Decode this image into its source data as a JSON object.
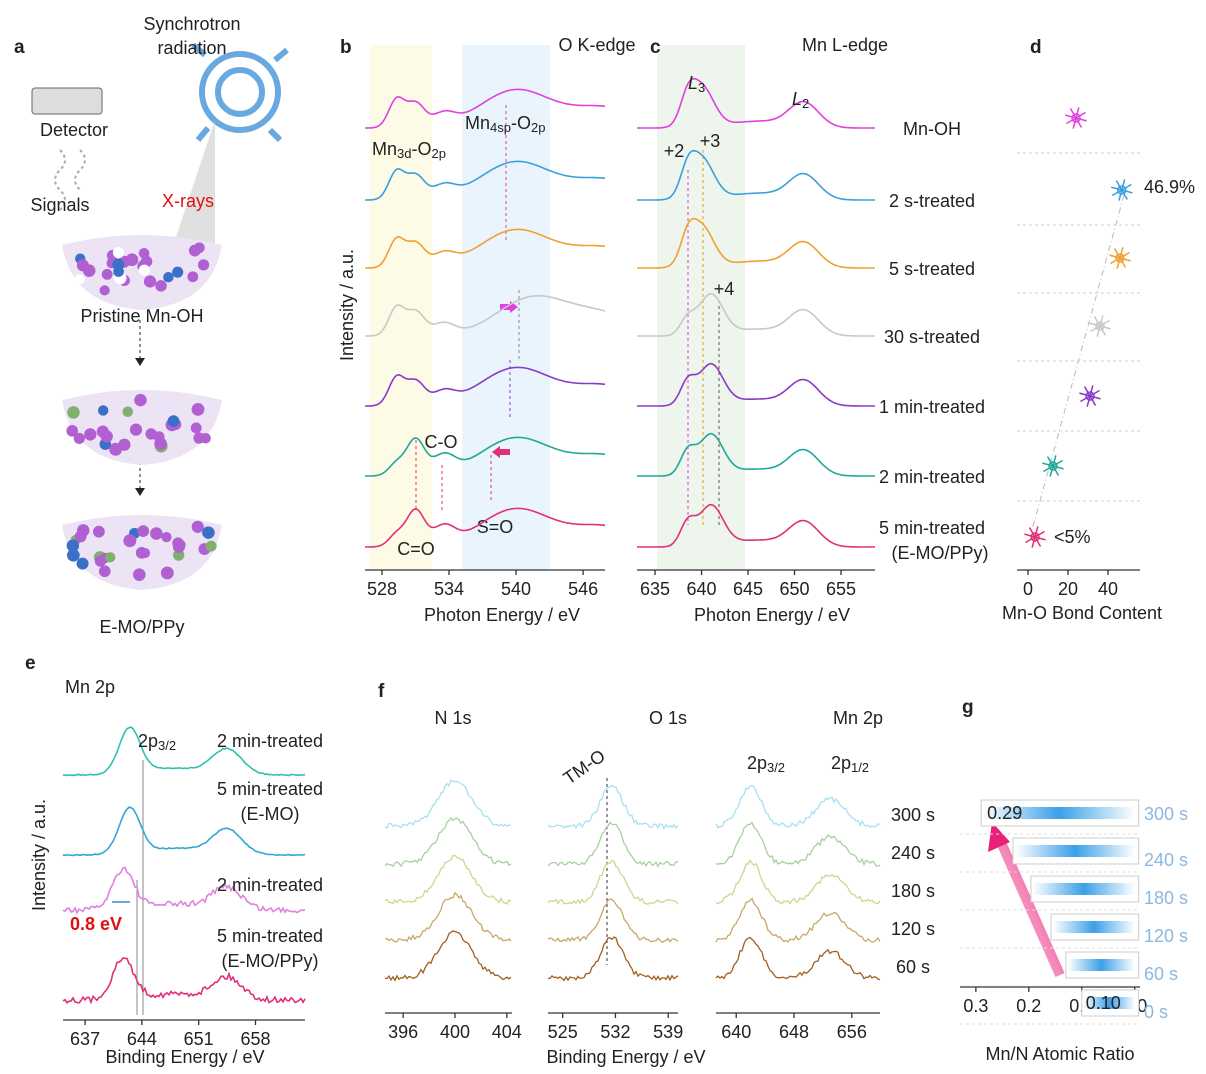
{
  "panel_a": {
    "label": "a",
    "source": [
      "Synchrotron",
      "radiation"
    ],
    "detector": "Detector",
    "signals": "Signals",
    "xrays": "X-rays",
    "pristine": "Pristine Mn-OH",
    "product": "E-MO/PPy"
  },
  "panel_b": {
    "label": "b",
    "edge": "O K-edge",
    "ylabel": "Intensity / a.u.",
    "xlabel": "Photon Energy / eV",
    "xlim": [
      526.48,
      547.96
    ],
    "xticks": [
      528,
      534,
      540,
      546
    ],
    "mn3d": [
      "Mn",
      "3d",
      "-O",
      "2p"
    ],
    "mn4sp": [
      "Mn",
      "4sp",
      "-O",
      "2p"
    ],
    "co": "C-O",
    "cdo": "C=O",
    "so": "S=O"
  },
  "panel_c": {
    "label": "c",
    "edge": "Mn L-edge",
    "xlabel": "Photon Energy / eV",
    "xlim": [
      633.06,
      658.65
    ],
    "xticks": [
      635,
      640,
      645,
      650,
      655
    ],
    "l3": [
      "L",
      "3"
    ],
    "l2": [
      "L",
      "2"
    ],
    "ox": [
      "+2",
      "+3",
      "+4"
    ]
  },
  "panel_d": {
    "label": "d",
    "type": "scatter",
    "samples": [
      "Mn-OH",
      "2 s-treated",
      "5 s-treated",
      "30 s-treated",
      "1 min-treated",
      "2 min-treated",
      "5 min-treated"
    ],
    "sample_note": "(E-MO/PPy)",
    "colors": [
      "#e040e0",
      "#3aa0dc",
      "#f0a030",
      "#c8c8c8",
      "#8a3ac8",
      "#20a898",
      "#e0307a"
    ],
    "values": [
      24,
      46.9,
      46,
      36,
      31,
      12.5,
      3.5
    ],
    "xlim": [
      -5.5,
      56
    ],
    "xticks": [
      0,
      20,
      40
    ],
    "xlabel": "Mn-O Bond Content",
    "high": "46.9%",
    "low": "<5%"
  },
  "panel_e": {
    "label": "e",
    "title": "Mn 2p",
    "peak": [
      "2p",
      "3/2"
    ],
    "shift": "0.8 eV",
    "ylabel": "Intensity / a.u.",
    "xlabel": "Binding Energy / eV",
    "xlim": [
      634.28,
      664.1
    ],
    "xticks": [
      637,
      644,
      651,
      658
    ],
    "curves": [
      {
        "name": "2 min-treated",
        "color": "#30c0b0"
      },
      {
        "name": "5 min-treated",
        "note": "(E-MO)",
        "color": "#30a8d0"
      },
      {
        "name": "2 min-treated",
        "color": "#e080e0"
      },
      {
        "name": "5 min-treated",
        "note": "(E-MO/PPy)",
        "color": "#e0307a"
      }
    ]
  },
  "panel_f": {
    "label": "f",
    "regions": [
      "N 1s",
      "O 1s",
      "Mn 2p"
    ],
    "xlims": [
      [
        394.6,
        404.4
      ],
      [
        523.05,
        540.3
      ],
      [
        637.2,
        659.9
      ]
    ],
    "xticks": [
      [
        396,
        400,
        404
      ],
      [
        525,
        532,
        539
      ],
      [
        640,
        648,
        656
      ]
    ],
    "times": [
      "300 s",
      "240 s",
      "180 s",
      "120 s",
      "60 s"
    ],
    "colors": [
      "#a8e0f0",
      "#a8d0a0",
      "#c8d890",
      "#c8a868",
      "#a06020"
    ],
    "tmo": "TM-O",
    "peaks": [
      [
        "2p",
        "3/2"
      ],
      [
        "2p",
        "1/2"
      ]
    ],
    "xlabel": "Binding Energy / eV"
  },
  "panel_g": {
    "label": "g",
    "type": "bar",
    "categories": [
      "300 s",
      "240 s",
      "180 s",
      "120 s",
      "60 s",
      "0 s"
    ],
    "values": [
      0.29,
      0.23,
      0.196,
      0.158,
      0.13,
      0.1
    ],
    "value_labels": [
      "0.29",
      null,
      null,
      null,
      null,
      "0.10"
    ],
    "xlim": [
      0.33,
      -0.01
    ],
    "xticks": [
      0.3,
      0.2,
      0.1,
      {
        "value": 0,
        "label": "0.0"
      }
    ],
    "xlabel": "Mn/N Atomic Ratio"
  }
}
